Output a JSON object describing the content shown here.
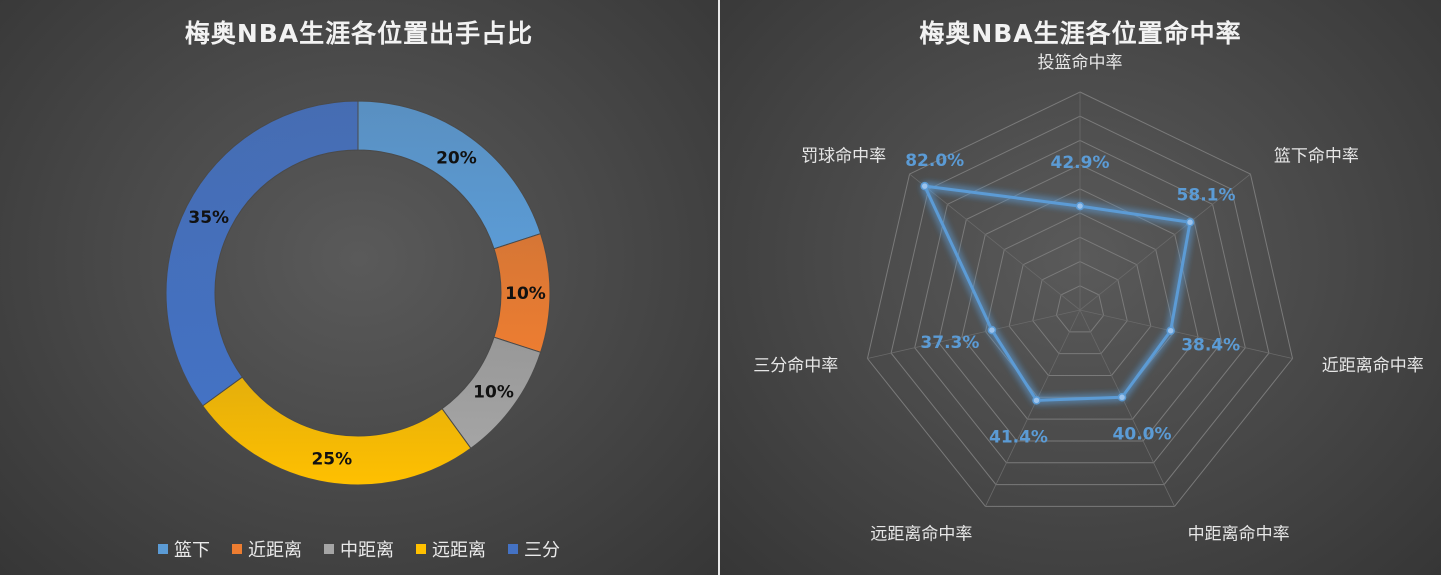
{
  "chart_data": [
    {
      "type": "pie",
      "variant": "donut",
      "title": "梅奥NBA生涯各位置出手占比",
      "categories": [
        "篮下",
        "近距离",
        "中距离",
        "远距离",
        "三分"
      ],
      "values": [
        20,
        10,
        10,
        25,
        35
      ],
      "labels": [
        "20%",
        "10%",
        "10%",
        "25%",
        "35%"
      ],
      "colors": [
        "#5b9bd5",
        "#ed7d31",
        "#a5a5a5",
        "#ffc000",
        "#4472c4"
      ],
      "legend_position": "bottom"
    },
    {
      "type": "radar",
      "title": "梅奥NBA生涯各位置命中率",
      "categories": [
        "投篮命中率",
        "篮下命中率",
        "近距离命中率",
        "中距离命中率",
        "远距离命中率",
        "三分命中率",
        "罚球命中率"
      ],
      "values": [
        42.9,
        58.1,
        38.4,
        40.0,
        41.4,
        37.3,
        82.0
      ],
      "labels": [
        "42.9%",
        "58.1%",
        "38.4%",
        "40.0%",
        "41.4%",
        "37.3%",
        "82.0%"
      ],
      "rlim": [
        0,
        90
      ],
      "ring_step": 10,
      "series_color": "#5b9bd5",
      "grid": true
    }
  ]
}
